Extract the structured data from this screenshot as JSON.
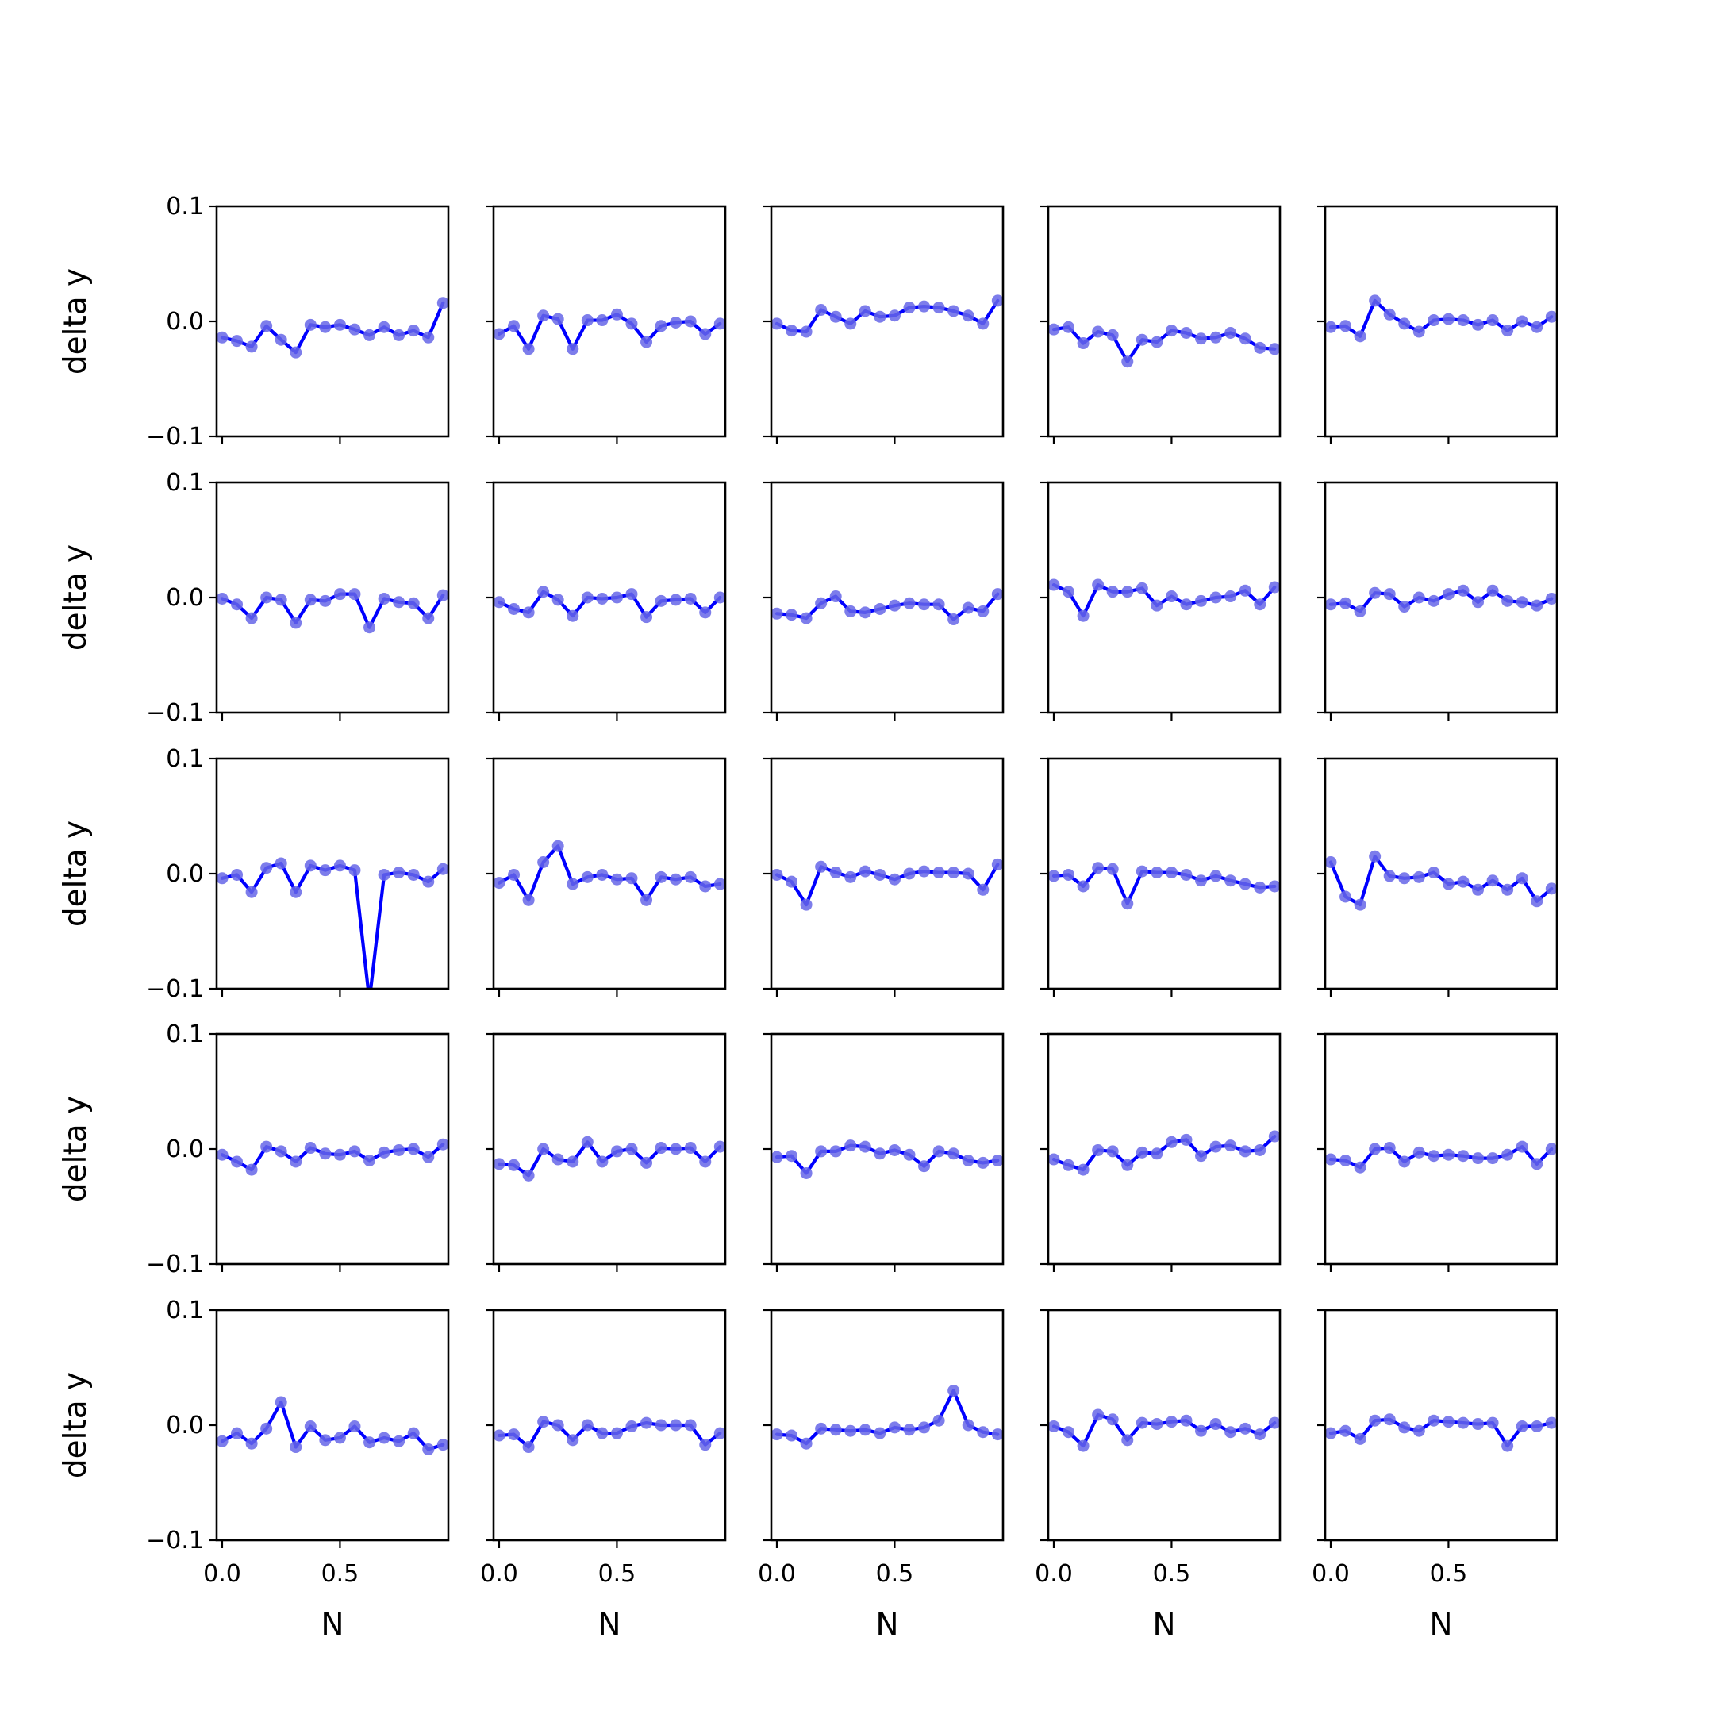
{
  "figure": {
    "rows": 5,
    "cols": 5,
    "sharex": true,
    "sharey": true
  },
  "chart_data": {
    "type": "line",
    "xlabel": "N",
    "ylabel": "delta y",
    "ylim": [
      -0.1,
      0.1
    ],
    "xlim": [
      -0.0235,
      0.96
    ],
    "yticks": [
      -0.1,
      0.0,
      0.1
    ],
    "ytick_labels": [
      "−0.1",
      "0.0",
      "0.1"
    ],
    "xticks": [
      0.0,
      0.5
    ],
    "xtick_labels": [
      "0.0",
      "0.5"
    ],
    "grid": false,
    "legend": false,
    "line_color": "#0000ff",
    "marker_color": "#6666e8",
    "x": [
      0.0,
      0.0625,
      0.125,
      0.1875,
      0.25,
      0.3125,
      0.375,
      0.4375,
      0.5,
      0.5625,
      0.625,
      0.6875,
      0.75,
      0.8125,
      0.875,
      0.9375
    ],
    "panels": [
      {
        "row": 0,
        "col": 0,
        "y": [
          -0.014,
          -0.017,
          -0.022,
          -0.004,
          -0.016,
          -0.027,
          -0.003,
          -0.005,
          -0.003,
          -0.007,
          -0.012,
          -0.005,
          -0.012,
          -0.008,
          -0.014,
          0.016
        ]
      },
      {
        "row": 0,
        "col": 1,
        "y": [
          -0.011,
          -0.004,
          -0.024,
          0.005,
          0.002,
          -0.024,
          0.001,
          0.001,
          0.006,
          -0.002,
          -0.018,
          -0.004,
          -0.001,
          0.0,
          -0.011,
          -0.002
        ]
      },
      {
        "row": 0,
        "col": 2,
        "y": [
          -0.002,
          -0.008,
          -0.009,
          0.01,
          0.004,
          -0.002,
          0.009,
          0.004,
          0.005,
          0.012,
          0.013,
          0.012,
          0.009,
          0.005,
          -0.002,
          0.018
        ]
      },
      {
        "row": 0,
        "col": 3,
        "y": [
          -0.007,
          -0.005,
          -0.019,
          -0.009,
          -0.012,
          -0.035,
          -0.016,
          -0.018,
          -0.008,
          -0.01,
          -0.015,
          -0.014,
          -0.01,
          -0.015,
          -0.023,
          -0.024
        ]
      },
      {
        "row": 0,
        "col": 4,
        "y": [
          -0.005,
          -0.004,
          -0.013,
          0.018,
          0.006,
          -0.002,
          -0.009,
          0.001,
          0.002,
          0.001,
          -0.003,
          0.001,
          -0.008,
          0.0,
          -0.005,
          0.004
        ]
      },
      {
        "row": 1,
        "col": 0,
        "y": [
          -0.001,
          -0.006,
          -0.018,
          0.0,
          -0.002,
          -0.022,
          -0.002,
          -0.003,
          0.003,
          0.003,
          -0.026,
          -0.001,
          -0.004,
          -0.005,
          -0.018,
          0.002
        ]
      },
      {
        "row": 1,
        "col": 1,
        "y": [
          -0.004,
          -0.01,
          -0.013,
          0.005,
          -0.002,
          -0.016,
          0.0,
          -0.001,
          0.0,
          0.003,
          -0.017,
          -0.003,
          -0.002,
          -0.001,
          -0.013,
          0.0
        ]
      },
      {
        "row": 1,
        "col": 2,
        "y": [
          -0.014,
          -0.015,
          -0.018,
          -0.005,
          0.001,
          -0.012,
          -0.013,
          -0.01,
          -0.007,
          -0.005,
          -0.006,
          -0.006,
          -0.019,
          -0.009,
          -0.012,
          0.003
        ]
      },
      {
        "row": 1,
        "col": 3,
        "y": [
          0.011,
          0.005,
          -0.016,
          0.011,
          0.005,
          0.005,
          0.008,
          -0.007,
          0.001,
          -0.006,
          -0.003,
          0.0,
          0.001,
          0.006,
          -0.006,
          0.009
        ]
      },
      {
        "row": 1,
        "col": 4,
        "y": [
          -0.006,
          -0.005,
          -0.012,
          0.004,
          0.003,
          -0.008,
          0.0,
          -0.003,
          0.003,
          0.006,
          -0.004,
          0.006,
          -0.003,
          -0.004,
          -0.007,
          -0.001
        ]
      },
      {
        "row": 2,
        "col": 0,
        "y": [
          -0.004,
          -0.001,
          -0.016,
          0.005,
          0.009,
          -0.016,
          0.007,
          0.003,
          0.007,
          0.003,
          -0.11,
          -0.001,
          0.001,
          -0.001,
          -0.007,
          0.004
        ]
      },
      {
        "row": 2,
        "col": 1,
        "y": [
          -0.008,
          -0.001,
          -0.023,
          0.01,
          0.024,
          -0.009,
          -0.003,
          -0.001,
          -0.005,
          -0.004,
          -0.023,
          -0.003,
          -0.005,
          -0.003,
          -0.011,
          -0.009
        ]
      },
      {
        "row": 2,
        "col": 2,
        "y": [
          -0.001,
          -0.007,
          -0.027,
          0.006,
          0.001,
          -0.003,
          0.002,
          -0.001,
          -0.005,
          0.0,
          0.002,
          0.001,
          0.001,
          0.0,
          -0.014,
          0.008
        ]
      },
      {
        "row": 2,
        "col": 3,
        "y": [
          -0.002,
          -0.001,
          -0.011,
          0.005,
          0.004,
          -0.026,
          0.002,
          0.001,
          0.001,
          -0.001,
          -0.006,
          -0.002,
          -0.006,
          -0.009,
          -0.012,
          -0.011
        ]
      },
      {
        "row": 2,
        "col": 4,
        "y": [
          0.01,
          -0.02,
          -0.027,
          0.015,
          -0.002,
          -0.004,
          -0.003,
          0.001,
          -0.009,
          -0.007,
          -0.014,
          -0.006,
          -0.014,
          -0.004,
          -0.024,
          -0.013
        ]
      },
      {
        "row": 3,
        "col": 0,
        "y": [
          -0.005,
          -0.011,
          -0.018,
          0.002,
          -0.002,
          -0.011,
          0.001,
          -0.004,
          -0.005,
          -0.002,
          -0.01,
          -0.003,
          -0.001,
          0.0,
          -0.007,
          0.004
        ]
      },
      {
        "row": 3,
        "col": 1,
        "y": [
          -0.013,
          -0.014,
          -0.023,
          0.0,
          -0.009,
          -0.011,
          0.006,
          -0.011,
          -0.002,
          0.0,
          -0.012,
          0.001,
          0.0,
          0.001,
          -0.011,
          0.002
        ]
      },
      {
        "row": 3,
        "col": 2,
        "y": [
          -0.007,
          -0.006,
          -0.021,
          -0.002,
          -0.002,
          0.003,
          0.002,
          -0.004,
          -0.001,
          -0.005,
          -0.015,
          -0.002,
          -0.004,
          -0.01,
          -0.012,
          -0.01
        ]
      },
      {
        "row": 3,
        "col": 3,
        "y": [
          -0.009,
          -0.014,
          -0.018,
          -0.001,
          -0.002,
          -0.014,
          -0.003,
          -0.004,
          0.006,
          0.008,
          -0.006,
          0.002,
          0.003,
          -0.002,
          -0.001,
          0.011
        ]
      },
      {
        "row": 3,
        "col": 4,
        "y": [
          -0.009,
          -0.01,
          -0.016,
          0.0,
          0.001,
          -0.011,
          -0.003,
          -0.006,
          -0.005,
          -0.006,
          -0.008,
          -0.008,
          -0.005,
          0.002,
          -0.013,
          0.0
        ]
      },
      {
        "row": 4,
        "col": 0,
        "y": [
          -0.014,
          -0.007,
          -0.016,
          -0.003,
          0.02,
          -0.019,
          -0.001,
          -0.013,
          -0.011,
          -0.001,
          -0.015,
          -0.011,
          -0.014,
          -0.007,
          -0.021,
          -0.017
        ]
      },
      {
        "row": 4,
        "col": 1,
        "y": [
          -0.009,
          -0.008,
          -0.019,
          0.003,
          0.0,
          -0.013,
          0.0,
          -0.007,
          -0.007,
          -0.001,
          0.002,
          0.0,
          0.0,
          0.0,
          -0.017,
          -0.007
        ]
      },
      {
        "row": 4,
        "col": 2,
        "y": [
          -0.008,
          -0.009,
          -0.016,
          -0.003,
          -0.004,
          -0.005,
          -0.004,
          -0.007,
          -0.002,
          -0.004,
          -0.002,
          0.004,
          0.03,
          0.0,
          -0.006,
          -0.008
        ]
      },
      {
        "row": 4,
        "col": 3,
        "y": [
          -0.001,
          -0.006,
          -0.018,
          0.009,
          0.005,
          -0.013,
          0.002,
          0.001,
          0.003,
          0.004,
          -0.005,
          0.001,
          -0.006,
          -0.003,
          -0.008,
          0.002
        ]
      },
      {
        "row": 4,
        "col": 4,
        "y": [
          -0.007,
          -0.005,
          -0.012,
          0.004,
          0.005,
          -0.002,
          -0.005,
          0.004,
          0.003,
          0.002,
          0.001,
          0.002,
          -0.018,
          -0.001,
          -0.001,
          0.002
        ]
      }
    ]
  }
}
